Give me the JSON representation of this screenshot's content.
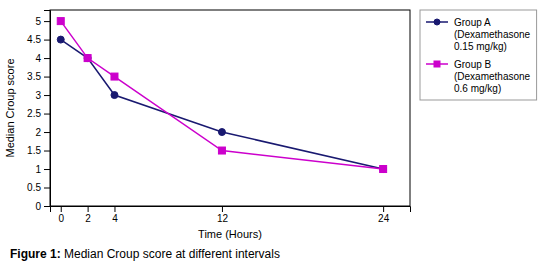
{
  "chart_data": {
    "type": "line",
    "x": [
      0,
      2,
      4,
      12,
      24
    ],
    "series": [
      {
        "name": "Group A\n(Dexamethasone\n0.15 mg/kg)",
        "color": "#191970",
        "marker": "circle",
        "values": [
          4.5,
          4.0,
          3.0,
          2.0,
          1.0
        ]
      },
      {
        "name": "Group B\n(Dexamethasone\n0.6 mg/kg)",
        "color": "#CC00CC",
        "marker": "square",
        "values": [
          5.0,
          4.0,
          3.5,
          1.5,
          1.0
        ]
      }
    ],
    "xlabel": "Time (Hours)",
    "ylabel": "Median Croup score",
    "xlim": [
      -0.8,
      26
    ],
    "ylim": [
      0,
      5.3
    ],
    "xticks": [
      0,
      2,
      4,
      12,
      24
    ],
    "yticks": [
      0,
      0.5,
      1,
      1.5,
      2,
      2.5,
      3,
      3.5,
      4,
      4.5,
      5
    ],
    "grid": false,
    "legend": "right",
    "annotations": [
      "Figure 1:",
      " Median Croup score at different intervals"
    ]
  }
}
